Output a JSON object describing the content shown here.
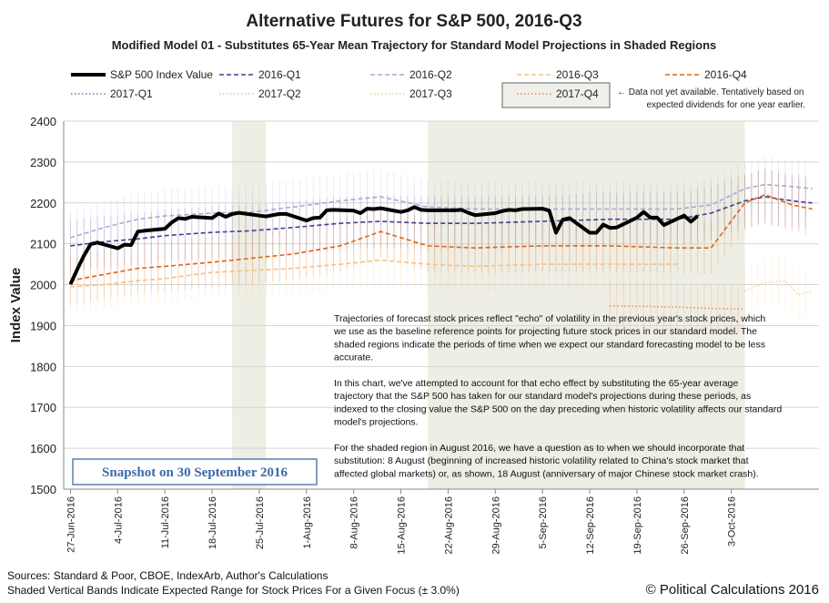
{
  "chart_data": {
    "type": "line",
    "title": "Alternative Futures for S&P 500, 2016-Q3",
    "subtitle": "Modified Model 01 - Substitutes 65-Year Mean Trajectory for Standard Model Projections in Shaded Regions",
    "ylabel": "Index Value",
    "xlabel": "",
    "ylim": [
      1500,
      2400
    ],
    "yticks": [
      1500,
      1600,
      1700,
      1800,
      1900,
      2000,
      2100,
      2200,
      2300,
      2400
    ],
    "x_start": "27-Jun-2016",
    "x_tick_labels": [
      "27-Jun-2016",
      "4-Jul-2016",
      "11-Jul-2016",
      "18-Jul-2016",
      "25-Jul-2016",
      "1-Aug-2016",
      "8-Aug-2016",
      "15-Aug-2016",
      "22-Aug-2016",
      "29-Aug-2016",
      "5-Sep-2016",
      "12-Sep-2016",
      "19-Sep-2016",
      "26-Sep-2016",
      "3-Oct-2016"
    ],
    "shaded_regions_day_index": [
      [
        24,
        29
      ],
      [
        53,
        100
      ]
    ],
    "error_band_pct": 3.0,
    "legend": [
      {
        "name": "S&P 500 Index Value",
        "color": "#000000",
        "style": "solid-thick"
      },
      {
        "name": "2016-Q1",
        "color": "#4b3c8c",
        "style": "dash"
      },
      {
        "name": "2016-Q2",
        "color": "#a9a9d4",
        "style": "dash"
      },
      {
        "name": "2016-Q3",
        "color": "#f6c283",
        "style": "dash"
      },
      {
        "name": "2016-Q4",
        "color": "#d9671a",
        "style": "dash"
      },
      {
        "name": "2017-Q1",
        "color": "#7a72b8",
        "style": "dot"
      },
      {
        "name": "2017-Q2",
        "color": "#c6c6e0",
        "style": "dot"
      },
      {
        "name": "2017-Q3",
        "color": "#f6cf8e",
        "style": "dot"
      },
      {
        "name": "2017-Q4",
        "color": "#f08a4b",
        "style": "dot"
      }
    ],
    "legend_note": [
      "← Data not yet available.  Tentatively based on",
      "expected dividends for one year earlier."
    ],
    "series": [
      {
        "name": "S&P 500 Index Value",
        "days": [
          0,
          1,
          2,
          3,
          4,
          7,
          8,
          9,
          10,
          11,
          14,
          15,
          16,
          17,
          18,
          21,
          22,
          23,
          24,
          25,
          28,
          29,
          30,
          31,
          32,
          35,
          36,
          37,
          38,
          39,
          42,
          43,
          44,
          45,
          46,
          49,
          50,
          51,
          52,
          53,
          56,
          57,
          58,
          59,
          60,
          63,
          64,
          65,
          66,
          67,
          70,
          71,
          72,
          73,
          74,
          77,
          78,
          79,
          80,
          81,
          84,
          85,
          86,
          87,
          88,
          91,
          92,
          93
        ],
        "values": [
          2001,
          2037,
          2071,
          2099,
          2103,
          2089,
          2098,
          2097,
          2130,
          2132,
          2137,
          2152,
          2163,
          2161,
          2166,
          2163,
          2174,
          2166,
          2173,
          2176,
          2169,
          2167,
          2170,
          2173,
          2173,
          2157,
          2163,
          2164,
          2182,
          2183,
          2181,
          2175,
          2186,
          2185,
          2187,
          2178,
          2182,
          2190,
          2183,
          2182,
          2182,
          2182,
          2183,
          2176,
          2170,
          2175,
          2180,
          2183,
          2182,
          2185,
          2186,
          2181,
          2127,
          2159,
          2163,
          2127,
          2127,
          2147,
          2139,
          2140,
          2164,
          2178,
          2164,
          2164,
          2146,
          2169,
          2154,
          2168
        ]
      },
      {
        "name": "2016-Q1",
        "days": [
          0,
          5,
          10,
          14,
          21,
          27,
          33,
          40,
          46,
          53,
          60,
          70,
          80,
          90,
          95,
          100,
          103,
          107,
          110
        ],
        "values": [
          2095,
          2105,
          2112,
          2120,
          2128,
          2132,
          2140,
          2150,
          2155,
          2150,
          2150,
          2155,
          2160,
          2160,
          2175,
          2205,
          2215,
          2205,
          2200
        ]
      },
      {
        "name": "2016-Q2",
        "days": [
          0,
          5,
          10,
          14,
          21,
          27,
          33,
          40,
          46,
          53,
          60,
          70,
          80,
          90,
          95,
          100,
          103,
          107,
          110
        ],
        "values": [
          2115,
          2140,
          2160,
          2168,
          2175,
          2178,
          2190,
          2205,
          2215,
          2190,
          2185,
          2185,
          2185,
          2185,
          2195,
          2235,
          2245,
          2240,
          2235
        ]
      },
      {
        "name": "2016-Q3",
        "days": [
          0,
          5,
          10,
          14,
          21,
          27,
          33,
          40,
          46,
          53,
          60,
          70,
          80,
          90
        ],
        "values": [
          1995,
          2000,
          2010,
          2015,
          2030,
          2035,
          2040,
          2050,
          2060,
          2050,
          2045,
          2050,
          2050,
          2050
        ]
      },
      {
        "name": "2016-Q4",
        "days": [
          0,
          5,
          10,
          14,
          21,
          27,
          33,
          40,
          46,
          53,
          60,
          70,
          80,
          90,
          95,
          100,
          103,
          107,
          110
        ],
        "values": [
          2010,
          2025,
          2040,
          2045,
          2055,
          2065,
          2075,
          2095,
          2130,
          2095,
          2090,
          2095,
          2095,
          2090,
          2090,
          2200,
          2220,
          2195,
          2185
        ]
      },
      {
        "name": "2017-Q3",
        "days": [
          100,
          103,
          106,
          108,
          110
        ],
        "values": [
          1985,
          2005,
          2010,
          1975,
          1985
        ]
      },
      {
        "name": "2017-Q4",
        "days": [
          80,
          85,
          90,
          95,
          100
        ],
        "values": [
          1948,
          1947,
          1945,
          1942,
          1940
        ]
      }
    ]
  },
  "snapshot_label": "Snapshot on 30 September 2016",
  "notes": [
    "Trajectories of forecast stock prices reflect \"echo\" of volatility in  the previous year's stock prices, which",
    "we use as the baseline reference points for projecting future stock prices in our standard model.   The",
    "shaded regions indicate the periods of time when we expect our standard forecasting model to be less",
    "accurate.",
    "",
    "In this chart, we've attempted to account for that echo effect by substituting the 65-year average",
    "trajectory that the S&P 500 has taken for our standard model's projections during these periods, as",
    "indexed to the closing value the S&P 500 on the day preceding when historic volatility affects our standard",
    "model's projections.",
    "",
    "For the shaded region in August 2016, we have a question as to when we should incorporate that",
    "substitution: 8 August (beginning of increased historic volatility related to China's stock market that",
    "affected global markets) or, as shown, 18 August (anniversary of major Chinese stock market crash)."
  ],
  "footer": {
    "sources": "Sources: Standard & Poor, CBOE, IndexArb, Author's Calculations",
    "bands_note": "Shaded Vertical Bands Indicate Expected Range for Stock Prices For a Given Focus (± 3.0%)",
    "copyright": "© Political Calculations 2016"
  }
}
